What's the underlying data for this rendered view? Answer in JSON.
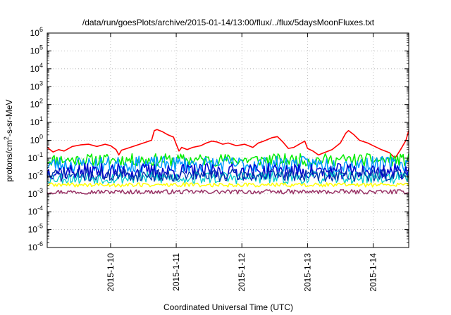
{
  "chart_data": {
    "type": "line",
    "title": "/data/run/goesPlots/archive/2015-01-14/13:00/flux/../flux/5daysMoonFluxes.txt",
    "xlabel": "Coordinated Universal Time (UTC)",
    "ylabel": "protons/cm²-s-sr-MeV",
    "yscale": "log",
    "ylim": [
      1e-06,
      1000000.0
    ],
    "xlim": [
      "2015-01-09 00:50",
      "2015-01-14 13:00"
    ],
    "grid": true,
    "legend": "none",
    "y_ticks": [
      {
        "value": 1e-06,
        "mantissa": "10",
        "exp": "-6"
      },
      {
        "value": 1e-05,
        "mantissa": "10",
        "exp": "-5"
      },
      {
        "value": 0.0001,
        "mantissa": "10",
        "exp": "-4"
      },
      {
        "value": 0.001,
        "mantissa": "10",
        "exp": "-3"
      },
      {
        "value": 0.01,
        "mantissa": "10",
        "exp": "-2"
      },
      {
        "value": 0.1,
        "mantissa": "10",
        "exp": "-1"
      },
      {
        "value": 1.0,
        "mantissa": "10",
        "exp": "0"
      },
      {
        "value": 10.0,
        "mantissa": "10",
        "exp": "1"
      },
      {
        "value": 100.0,
        "mantissa": "10",
        "exp": "2"
      },
      {
        "value": 1000.0,
        "mantissa": "10",
        "exp": "3"
      },
      {
        "value": 10000.0,
        "mantissa": "10",
        "exp": "4"
      },
      {
        "value": 100000.0,
        "mantissa": "10",
        "exp": "5"
      },
      {
        "value": 1000000.0,
        "mantissa": "10",
        "exp": "6"
      }
    ],
    "x_ticks": [
      {
        "value": "2015-01-10",
        "label": "2015-1-10"
      },
      {
        "value": "2015-01-11",
        "label": "2015-1-11"
      },
      {
        "value": "2015-01-12",
        "label": "2015-1-12"
      },
      {
        "value": "2015-01-13",
        "label": "2015-1-13"
      },
      {
        "value": "2015-01-14",
        "label": "2015-1-14"
      }
    ],
    "series": [
      {
        "color": "#ff0000",
        "width": 1.6,
        "points": [
          [
            "2015-01-09 00:50",
            0.4
          ],
          [
            "2015-01-09 03:00",
            0.22
          ],
          [
            "2015-01-09 05:00",
            0.3
          ],
          [
            "2015-01-09 07:00",
            0.25
          ],
          [
            "2015-01-09 10:00",
            0.45
          ],
          [
            "2015-01-09 13:00",
            0.55
          ],
          [
            "2015-01-09 16:00",
            0.6
          ],
          [
            "2015-01-09 19:00",
            0.45
          ],
          [
            "2015-01-09 22:00",
            0.6
          ],
          [
            "2015-01-10 00:00",
            0.5
          ],
          [
            "2015-01-10 02:00",
            0.3
          ],
          [
            "2015-01-10 03:00",
            0.15
          ],
          [
            "2015-01-10 04:00",
            0.28
          ],
          [
            "2015-01-10 06:00",
            0.35
          ],
          [
            "2015-01-10 09:00",
            0.5
          ],
          [
            "2015-01-10 12:00",
            0.7
          ],
          [
            "2015-01-10 15:00",
            1.0
          ],
          [
            "2015-01-10 16:00",
            3.5
          ],
          [
            "2015-01-10 17:00",
            4.0
          ],
          [
            "2015-01-10 19:00",
            3.0
          ],
          [
            "2015-01-10 21:00",
            2.0
          ],
          [
            "2015-01-10 23:00",
            1.5
          ],
          [
            "2015-01-11 00:00",
            0.6
          ],
          [
            "2015-01-11 01:00",
            0.25
          ],
          [
            "2015-01-11 02:00",
            0.4
          ],
          [
            "2015-01-11 04:00",
            0.3
          ],
          [
            "2015-01-11 06:00",
            0.4
          ],
          [
            "2015-01-11 09:00",
            0.5
          ],
          [
            "2015-01-11 11:00",
            0.7
          ],
          [
            "2015-01-11 13:00",
            0.9
          ],
          [
            "2015-01-11 15:00",
            0.8
          ],
          [
            "2015-01-11 17:00",
            0.6
          ],
          [
            "2015-01-11 19:00",
            0.7
          ],
          [
            "2015-01-11 22:00",
            0.5
          ],
          [
            "2015-01-12 01:00",
            0.6
          ],
          [
            "2015-01-12 04:00",
            0.4
          ],
          [
            "2015-01-12 06:00",
            0.7
          ],
          [
            "2015-01-12 08:00",
            0.9
          ],
          [
            "2015-01-12 11:00",
            1.4
          ],
          [
            "2015-01-12 13:00",
            1.6
          ],
          [
            "2015-01-12 15:00",
            0.8
          ],
          [
            "2015-01-12 17:00",
            0.35
          ],
          [
            "2015-01-12 19:00",
            0.4
          ],
          [
            "2015-01-12 21:00",
            0.6
          ],
          [
            "2015-01-12 23:00",
            0.9
          ],
          [
            "2015-01-13 00:00",
            0.35
          ],
          [
            "2015-01-13 02:00",
            0.25
          ],
          [
            "2015-01-13 04:00",
            0.15
          ],
          [
            "2015-01-13 06:00",
            0.2
          ],
          [
            "2015-01-13 09:00",
            0.3
          ],
          [
            "2015-01-13 12:00",
            0.7
          ],
          [
            "2015-01-13 14:00",
            2.5
          ],
          [
            "2015-01-13 15:00",
            3.5
          ],
          [
            "2015-01-13 17:00",
            2.0
          ],
          [
            "2015-01-13 19:00",
            1.0
          ],
          [
            "2015-01-13 22:00",
            0.7
          ],
          [
            "2015-01-14 00:00",
            0.5
          ],
          [
            "2015-01-14 03:00",
            0.3
          ],
          [
            "2015-01-14 06:00",
            0.2
          ],
          [
            "2015-01-14 08:00",
            0.1
          ],
          [
            "2015-01-14 10:00",
            0.3
          ],
          [
            "2015-01-14 12:00",
            1.0
          ],
          [
            "2015-01-14 13:00",
            3.5
          ]
        ]
      },
      {
        "color": "#00ee00",
        "width": 1.5,
        "base": 0.08,
        "amp": 0.35,
        "seed": 11
      },
      {
        "color": "#0099ff",
        "width": 1.5,
        "base": 0.045,
        "amp": 0.45,
        "seed": 23
      },
      {
        "color": "#0000cc",
        "width": 1.5,
        "base": 0.018,
        "amp": 0.45,
        "seed": 37
      },
      {
        "color": "#00cccc",
        "width": 1.3,
        "base": 0.008,
        "amp": 0.35,
        "seed": 53
      },
      {
        "color": "#0033aa",
        "width": 1.3,
        "base": 0.011,
        "amp": 0.35,
        "seed": 71
      },
      {
        "color": "#ffff00",
        "width": 1.5,
        "base": 0.0032,
        "amp": 0.12,
        "seed": 89
      },
      {
        "color": "#993366",
        "width": 1.5,
        "base": 0.0013,
        "amp": 0.12,
        "seed": 97
      }
    ]
  }
}
